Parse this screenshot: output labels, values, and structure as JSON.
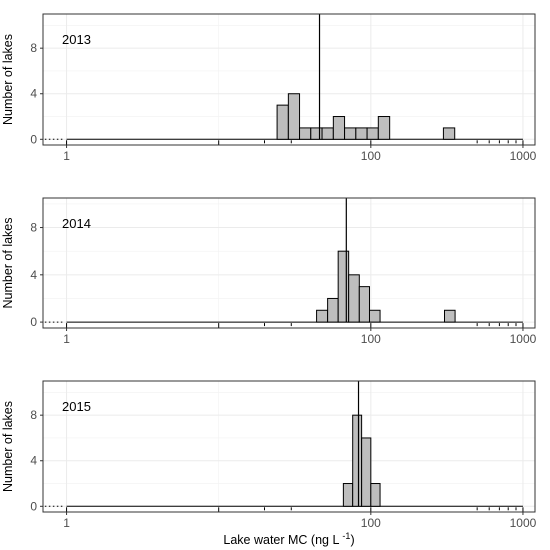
{
  "chart_data": {
    "type": "histogram",
    "x_label": "Lake water MC (ng L",
    "x_label_superscript": "-1",
    "x_label_close": ")",
    "x_scale": "log10",
    "x_range": [
      0.7,
      1200
    ],
    "x_ticks": [
      "1",
      "100",
      "1000"
    ],
    "x_tick_values": [
      1,
      100,
      1000
    ],
    "y_label": "Number of lakes",
    "grid": true,
    "colors": {
      "bar_fill": "#bebebe",
      "bar_stroke": "#000000",
      "grid": "#ebebeb",
      "panel_border": "#333333"
    },
    "panels": [
      {
        "year": "2013",
        "y_range": [
          -0.5,
          11
        ],
        "y_ticks": [
          "0",
          "4",
          "8"
        ],
        "y_tick_values": [
          0,
          4,
          8
        ],
        "median_line": 46,
        "bins": [
          {
            "from": 24.2,
            "to": 28.7,
            "count": 3
          },
          {
            "from": 28.7,
            "to": 34.0,
            "count": 4
          },
          {
            "from": 34.0,
            "to": 40.3,
            "count": 1
          },
          {
            "from": 40.3,
            "to": 47.8,
            "count": 1
          },
          {
            "from": 47.8,
            "to": 56.7,
            "count": 1
          },
          {
            "from": 56.7,
            "to": 67.2,
            "count": 2
          },
          {
            "from": 67.2,
            "to": 79.7,
            "count": 1
          },
          {
            "from": 79.7,
            "to": 94.5,
            "count": 1
          },
          {
            "from": 94.5,
            "to": 112,
            "count": 1
          },
          {
            "from": 112,
            "to": 133,
            "count": 2
          },
          {
            "from": 300,
            "to": 356,
            "count": 1
          }
        ]
      },
      {
        "year": "2014",
        "y_range": [
          -0.5,
          10.5
        ],
        "y_ticks": [
          "0",
          "4",
          "8"
        ],
        "y_tick_values": [
          0,
          4,
          8
        ],
        "median_line": 69,
        "bins": [
          {
            "from": 44,
            "to": 52,
            "count": 1
          },
          {
            "from": 52,
            "to": 61,
            "count": 2
          },
          {
            "from": 61,
            "to": 71.5,
            "count": 6
          },
          {
            "from": 71.5,
            "to": 84,
            "count": 4
          },
          {
            "from": 84,
            "to": 98,
            "count": 3
          },
          {
            "from": 98,
            "to": 115,
            "count": 1
          },
          {
            "from": 305,
            "to": 358,
            "count": 1
          }
        ]
      },
      {
        "year": "2015",
        "y_range": [
          -0.5,
          11
        ],
        "y_ticks": [
          "0",
          "4",
          "8"
        ],
        "y_tick_values": [
          0,
          4,
          8
        ],
        "median_line": 83,
        "bins": [
          {
            "from": 66,
            "to": 76,
            "count": 2
          },
          {
            "from": 76,
            "to": 87,
            "count": 8
          },
          {
            "from": 87,
            "to": 100,
            "count": 6
          },
          {
            "from": 100,
            "to": 115,
            "count": 2
          }
        ]
      }
    ]
  }
}
